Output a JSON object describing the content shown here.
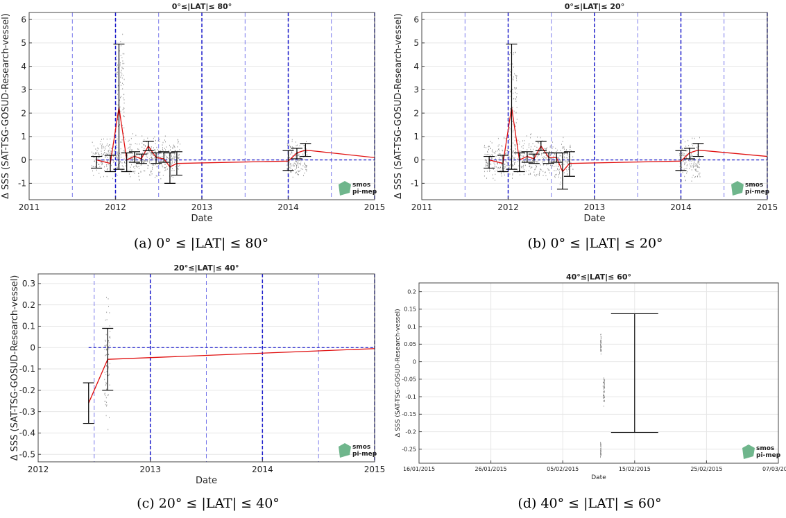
{
  "figure": {
    "captions": [
      "(a) 0° ≤ |LAT| ≤ 80°",
      "(b) 0° ≤ |LAT| ≤ 20°",
      "(c) 20° ≤ |LAT| ≤ 40°",
      "(d) 40° ≤ |LAT| ≤ 60°"
    ],
    "logo_text": [
      "smos",
      "pi-mep"
    ]
  },
  "chart_data": [
    {
      "type": "line",
      "title": "0°≤|LAT|≤ 80°",
      "xlabel": "Date",
      "ylabel": "Δ SSS (SAT-TSG-GOSUD-Research-vessel)",
      "xlim": [
        2011,
        2015
      ],
      "ylim": [
        -1.7,
        6.3
      ],
      "xticks": [
        2011,
        2012,
        2013,
        2014,
        2015
      ],
      "xtick_labels": [
        "2011",
        "2012",
        "2013",
        "2014",
        "2015"
      ],
      "yticks": [
        -1,
        0,
        1,
        2,
        3,
        4,
        5,
        6
      ],
      "ytick_labels": [
        "-1",
        "0",
        "1",
        "2",
        "3",
        "4",
        "5",
        "6"
      ],
      "grid": true,
      "zero_line": 0,
      "year_lines": [
        2012,
        2013,
        2014,
        2015
      ],
      "halfyear_lines": [
        2011.5,
        2012.5,
        2013.5,
        2014.5
      ],
      "mean_x": [
        2011.78,
        2011.94,
        2012.04,
        2012.13,
        2012.22,
        2012.3,
        2012.38,
        2012.47,
        2012.56,
        2012.63,
        2012.71,
        2014.0,
        2014.1,
        2014.2,
        2015.0
      ],
      "mean_y": [
        0.0,
        -0.15,
        2.25,
        0.0,
        0.15,
        0.05,
        0.6,
        0.1,
        0.05,
        -0.3,
        -0.15,
        -0.05,
        0.3,
        0.42,
        0.1
      ],
      "error_bars": [
        {
          "x": 2011.78,
          "low": -0.35,
          "high": 0.15
        },
        {
          "x": 2011.94,
          "low": -0.5,
          "high": 0.2
        },
        {
          "x": 2012.04,
          "low": -0.4,
          "high": 4.95
        },
        {
          "x": 2012.13,
          "low": -0.5,
          "high": 0.3
        },
        {
          "x": 2012.22,
          "low": -0.1,
          "high": 0.35
        },
        {
          "x": 2012.3,
          "low": -0.15,
          "high": 0.25
        },
        {
          "x": 2012.38,
          "low": 0.4,
          "high": 0.8
        },
        {
          "x": 2012.47,
          "low": -0.15,
          "high": 0.3
        },
        {
          "x": 2012.56,
          "low": -0.1,
          "high": 0.35
        },
        {
          "x": 2012.63,
          "low": -1.0,
          "high": 0.3
        },
        {
          "x": 2012.71,
          "low": -0.65,
          "high": 0.35
        },
        {
          "x": 2014.0,
          "low": -0.45,
          "high": 0.4
        },
        {
          "x": 2014.1,
          "low": 0.05,
          "high": 0.5
        },
        {
          "x": 2014.2,
          "low": 0.15,
          "high": 0.7
        }
      ],
      "scatter_spread": [
        {
          "x0": 2011.72,
          "x1": 2012.75,
          "lo": -1.0,
          "hi": 1.3
        },
        {
          "x0": 2012.0,
          "x1": 2012.1,
          "lo": -0.5,
          "hi": 6.2
        },
        {
          "x0": 2013.98,
          "x1": 2014.22,
          "lo": -1.2,
          "hi": 1.2
        }
      ]
    },
    {
      "type": "line",
      "title": "0°≤|LAT|≤ 20°",
      "xlabel": "Date",
      "ylabel": "Δ SSS (SAT-TSG-GOSUD-Research-vessel)",
      "xlim": [
        2011,
        2015
      ],
      "ylim": [
        -1.7,
        6.3
      ],
      "xticks": [
        2011,
        2012,
        2013,
        2014,
        2015
      ],
      "xtick_labels": [
        "2011",
        "2012",
        "2013",
        "2014",
        "2015"
      ],
      "yticks": [
        -1,
        0,
        1,
        2,
        3,
        4,
        5,
        6
      ],
      "ytick_labels": [
        "-1",
        "0",
        "1",
        "2",
        "3",
        "4",
        "5",
        "6"
      ],
      "grid": true,
      "zero_line": 0,
      "year_lines": [
        2012,
        2013,
        2014,
        2015
      ],
      "halfyear_lines": [
        2011.5,
        2012.5,
        2013.5,
        2014.5
      ],
      "mean_x": [
        2011.78,
        2011.94,
        2012.04,
        2012.13,
        2012.22,
        2012.3,
        2012.38,
        2012.47,
        2012.56,
        2012.63,
        2012.71,
        2014.0,
        2014.1,
        2014.2,
        2015.0
      ],
      "mean_y": [
        0.0,
        -0.15,
        2.25,
        0.0,
        0.15,
        0.05,
        0.6,
        0.1,
        0.1,
        -0.5,
        -0.15,
        -0.05,
        0.3,
        0.42,
        0.15
      ],
      "error_bars": [
        {
          "x": 2011.78,
          "low": -0.35,
          "high": 0.15
        },
        {
          "x": 2011.94,
          "low": -0.5,
          "high": 0.2
        },
        {
          "x": 2012.04,
          "low": -0.4,
          "high": 4.95
        },
        {
          "x": 2012.13,
          "low": -0.5,
          "high": 0.3
        },
        {
          "x": 2012.22,
          "low": -0.1,
          "high": 0.35
        },
        {
          "x": 2012.3,
          "low": -0.15,
          "high": 0.25
        },
        {
          "x": 2012.38,
          "low": 0.4,
          "high": 0.8
        },
        {
          "x": 2012.47,
          "low": -0.15,
          "high": 0.3
        },
        {
          "x": 2012.56,
          "low": -0.1,
          "high": 0.3
        },
        {
          "x": 2012.63,
          "low": -1.25,
          "high": 0.3
        },
        {
          "x": 2012.71,
          "low": -0.7,
          "high": 0.35
        },
        {
          "x": 2014.0,
          "low": -0.45,
          "high": 0.4
        },
        {
          "x": 2014.1,
          "low": 0.05,
          "high": 0.5
        },
        {
          "x": 2014.2,
          "low": 0.15,
          "high": 0.7
        }
      ],
      "scatter_spread": [
        {
          "x0": 2011.72,
          "x1": 2012.75,
          "lo": -1.2,
          "hi": 1.3
        },
        {
          "x0": 2012.0,
          "x1": 2012.1,
          "lo": -0.5,
          "hi": 6.2
        },
        {
          "x0": 2013.98,
          "x1": 2014.22,
          "lo": -1.2,
          "hi": 1.2
        }
      ]
    },
    {
      "type": "line",
      "title": "20°≤|LAT|≤ 40°",
      "xlabel": "Date",
      "ylabel": "Δ SSS (SAT-TSG-GOSUD-Research-vessel)",
      "xlim": [
        2012,
        2015
      ],
      "ylim": [
        -0.535,
        0.345
      ],
      "xticks": [
        2012,
        2013,
        2014,
        2015
      ],
      "xtick_labels": [
        "2012",
        "2013",
        "2014",
        "2015"
      ],
      "yticks": [
        -0.5,
        -0.4,
        -0.3,
        -0.2,
        -0.1,
        0,
        0.1,
        0.2,
        0.3
      ],
      "ytick_labels": [
        "-0.5",
        "-0.4",
        "-0.3",
        "-0.2",
        "-0.1",
        "0",
        "0.1",
        "0.2",
        "0.3"
      ],
      "grid": true,
      "zero_line": 0,
      "year_lines": [
        2013,
        2014,
        2015
      ],
      "halfyear_lines": [
        2012.5,
        2013.5,
        2014.5
      ],
      "mean_x": [
        2012.45,
        2012.62,
        2015.0
      ],
      "mean_y": [
        -0.26,
        -0.055,
        -0.005
      ],
      "error_bars": [
        {
          "x": 2012.45,
          "low": -0.355,
          "high": -0.165
        },
        {
          "x": 2012.62,
          "low": -0.2,
          "high": 0.09
        }
      ],
      "scatter_spread": [
        {
          "x0": 2012.59,
          "x1": 2012.64,
          "lo": -0.43,
          "hi": 0.34
        }
      ]
    },
    {
      "type": "scatter",
      "title": "40°≤|LAT|≤ 60°",
      "xlabel": "Date",
      "ylabel": "Δ SSS (SAT-TSG-GOSUD-Research-vessel)",
      "xlim": [
        0,
        50
      ],
      "ylim": [
        -0.29,
        0.225
      ],
      "xticks": [
        0,
        10,
        20,
        30,
        40,
        50
      ],
      "xtick_labels": [
        "16/01/2015",
        "26/01/2015",
        "05/02/2015",
        "15/02/2015",
        "25/02/2015",
        "07/03/2015"
      ],
      "yticks": [
        -0.25,
        -0.2,
        -0.15,
        -0.1,
        -0.05,
        0,
        0.05,
        0.1,
        0.15,
        0.2
      ],
      "ytick_labels": [
        "-0.25",
        "-0.2",
        "-0.15",
        "-0.1",
        "-0.05",
        "0",
        "0.05",
        "0.1",
        "0.15",
        "0.2"
      ],
      "grid": true,
      "error_bars": [
        {
          "x": 30.0,
          "low": -0.202,
          "high": 0.137
        }
      ],
      "scatter_spread": [
        {
          "x0": 25.2,
          "x1": 25.35,
          "lo": 0.01,
          "hi": 0.095
        },
        {
          "x0": 25.55,
          "x1": 25.8,
          "lo": -0.14,
          "hi": -0.015
        },
        {
          "x0": 25.2,
          "x1": 25.3,
          "lo": -0.28,
          "hi": -0.22
        }
      ]
    }
  ]
}
